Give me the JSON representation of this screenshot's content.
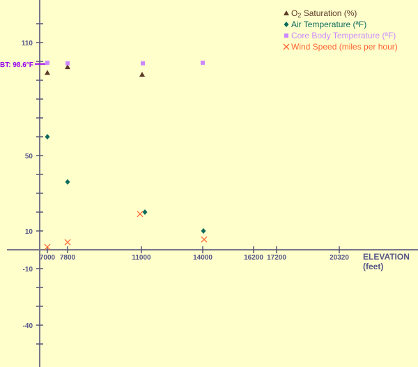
{
  "chart_data": {
    "type": "scatter",
    "xlabel": "ELEVATION",
    "xlabel_unit": "(feet)",
    "x_ticks": [
      7000,
      7800,
      11000,
      14000,
      16200,
      17200,
      20320
    ],
    "y_tick_labels": [
      110,
      50,
      10,
      -10,
      -40
    ],
    "ylim": [
      -50,
      120
    ],
    "grid": false,
    "legend_position": "top-right",
    "reference_line": {
      "label": "BT: 98.6°F",
      "value": 98.6,
      "color": "#9900ee"
    },
    "series": [
      {
        "name": "O2 Saturation (%)",
        "name_parts": [
          "O",
          "2",
          " Saturation (%)"
        ],
        "marker": "triangle",
        "color": "#5c3a28",
        "x": [
          7000,
          7800,
          11000
        ],
        "y": [
          94,
          97,
          93
        ]
      },
      {
        "name": "Air Temperature (ªF)",
        "marker": "diamond",
        "color": "#0b6b5c",
        "x": [
          7000,
          7800,
          11000,
          14000
        ],
        "y": [
          60,
          36,
          20,
          10
        ]
      },
      {
        "name": "Core Body Temperature (ªF)",
        "marker": "square",
        "color": "#cc88ff",
        "x": [
          7000,
          7800,
          11000,
          14000
        ],
        "y": [
          99.3,
          99,
          99,
          99.3
        ]
      },
      {
        "name": "Wind Speed (miles per hour)",
        "marker": "x",
        "color": "#ff6633",
        "x": [
          7000,
          7800,
          11000,
          14000
        ],
        "y": [
          1.5,
          4,
          19,
          5.5
        ]
      }
    ]
  }
}
